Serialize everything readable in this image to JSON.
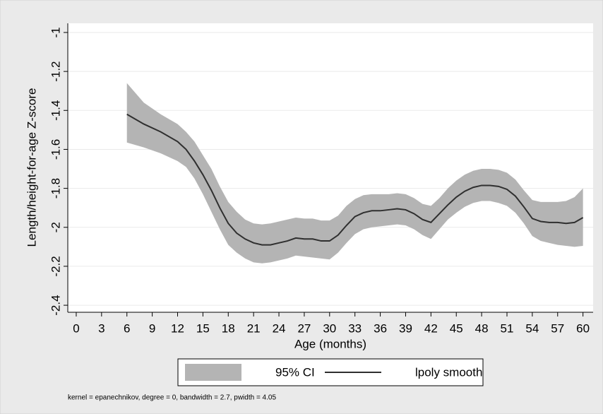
{
  "chart_data": {
    "type": "line",
    "y_label": "Length/height-for-age Z-score",
    "x_label": "Age (months)",
    "note": "kernel = epanechnikov, degree = 0, bandwidth = 2.7, pwidth = 4.05",
    "x": [
      6,
      8,
      10,
      12,
      13,
      14,
      15,
      16,
      17,
      18,
      19,
      20,
      21,
      22,
      23,
      24,
      25,
      26,
      27,
      28,
      29,
      30,
      31,
      32,
      33,
      34,
      35,
      36,
      37,
      38,
      39,
      40,
      41,
      42,
      43,
      44,
      45,
      46,
      47,
      48,
      49,
      50,
      51,
      52,
      53,
      54,
      55,
      56,
      57,
      58,
      59,
      60
    ],
    "series": [
      {
        "name": "95% CI",
        "color": "#b4b4b4",
        "upper": [
          -1.26,
          -1.36,
          -1.42,
          -1.47,
          -1.51,
          -1.56,
          -1.63,
          -1.7,
          -1.79,
          -1.87,
          -1.92,
          -1.96,
          -1.98,
          -1.985,
          -1.98,
          -1.97,
          -1.96,
          -1.95,
          -1.955,
          -1.955,
          -1.965,
          -1.965,
          -1.94,
          -1.89,
          -1.855,
          -1.835,
          -1.83,
          -1.83,
          -1.83,
          -1.825,
          -1.83,
          -1.85,
          -1.88,
          -1.89,
          -1.85,
          -1.8,
          -1.76,
          -1.73,
          -1.71,
          -1.7,
          -1.7,
          -1.705,
          -1.72,
          -1.755,
          -1.81,
          -1.86,
          -1.87,
          -1.87,
          -1.87,
          -1.865,
          -1.845,
          -1.8
        ],
        "lower": [
          -1.565,
          -1.59,
          -1.62,
          -1.66,
          -1.69,
          -1.75,
          -1.83,
          -1.92,
          -2.01,
          -2.09,
          -2.13,
          -2.16,
          -2.18,
          -2.185,
          -2.18,
          -2.17,
          -2.16,
          -2.145,
          -2.15,
          -2.155,
          -2.16,
          -2.165,
          -2.13,
          -2.08,
          -2.035,
          -2.01,
          -2.0,
          -1.995,
          -1.99,
          -1.985,
          -1.99,
          -2.01,
          -2.04,
          -2.06,
          -2.01,
          -1.96,
          -1.925,
          -1.895,
          -1.875,
          -1.865,
          -1.865,
          -1.875,
          -1.89,
          -1.925,
          -1.98,
          -2.045,
          -2.07,
          -2.08,
          -2.09,
          -2.095,
          -2.1,
          -2.095
        ]
      },
      {
        "name": "lpoly smooth",
        "color": "#2f2f2f",
        "values": [
          -1.42,
          -1.47,
          -1.51,
          -1.56,
          -1.6,
          -1.66,
          -1.73,
          -1.81,
          -1.9,
          -1.98,
          -2.03,
          -2.06,
          -2.08,
          -2.09,
          -2.09,
          -2.08,
          -2.07,
          -2.055,
          -2.06,
          -2.06,
          -2.07,
          -2.07,
          -2.04,
          -1.99,
          -1.945,
          -1.925,
          -1.915,
          -1.915,
          -1.91,
          -1.905,
          -1.91,
          -1.93,
          -1.96,
          -1.975,
          -1.93,
          -1.885,
          -1.845,
          -1.815,
          -1.795,
          -1.785,
          -1.785,
          -1.79,
          -1.805,
          -1.84,
          -1.895,
          -1.955,
          -1.97,
          -1.975,
          -1.975,
          -1.98,
          -1.975,
          -1.95
        ]
      }
    ],
    "xlim": [
      -1,
      61.2
    ],
    "ylim": [
      -2.436,
      -0.953
    ],
    "xticks": [
      0,
      3,
      6,
      9,
      12,
      15,
      18,
      21,
      24,
      27,
      30,
      33,
      36,
      39,
      42,
      45,
      48,
      51,
      54,
      57,
      60
    ],
    "yticks": [
      -1,
      -1.2,
      -1.4,
      -1.6,
      -1.8,
      -2,
      -2.2,
      -2.4
    ],
    "grid": true,
    "legend": "bottom"
  }
}
